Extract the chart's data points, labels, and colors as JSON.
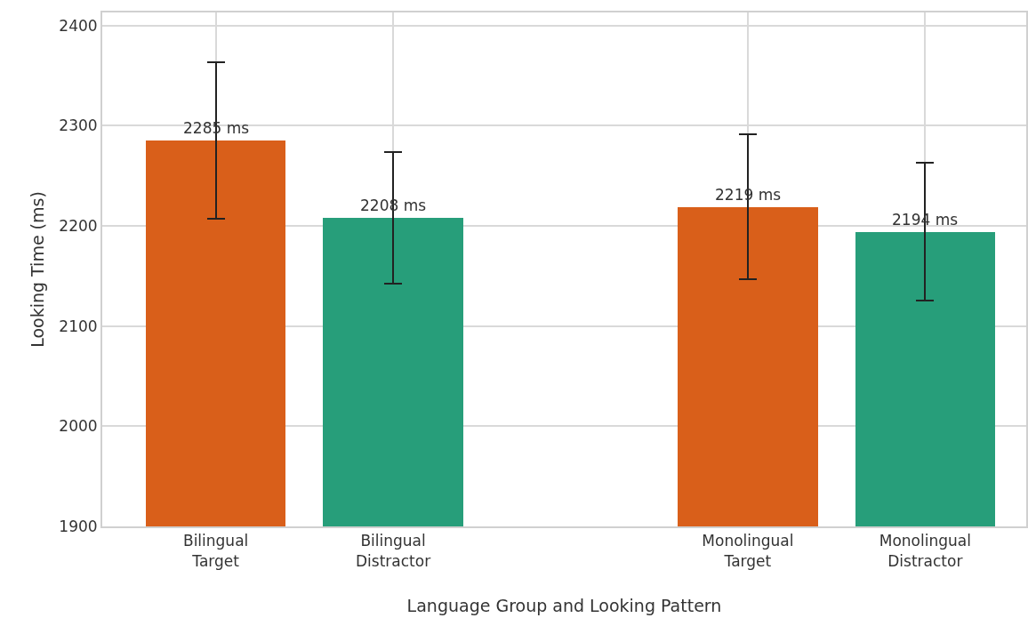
{
  "chart_data": {
    "type": "bar",
    "xlabel": "Language Group and Looking Pattern",
    "ylabel": "Looking Time (ms)",
    "categories": [
      "Bilingual\nTarget",
      "Bilingual\nDistractor",
      null,
      "Monolingual\nTarget",
      "Monolingual\nDistractor"
    ],
    "values": [
      2285,
      2208,
      null,
      2219,
      2194
    ],
    "colors": [
      "#d95f1a",
      "#279e7a",
      null,
      "#d95f1a",
      "#279e7a"
    ],
    "errors": [
      78,
      66,
      null,
      72,
      69
    ],
    "value_labels": [
      "2285 ms",
      "2208 ms",
      null,
      "2219 ms",
      "2194 ms"
    ],
    "ylim": [
      1900,
      2413
    ],
    "yticks": [
      1900,
      2000,
      2100,
      2200,
      2300,
      2400
    ],
    "grid": true
  }
}
